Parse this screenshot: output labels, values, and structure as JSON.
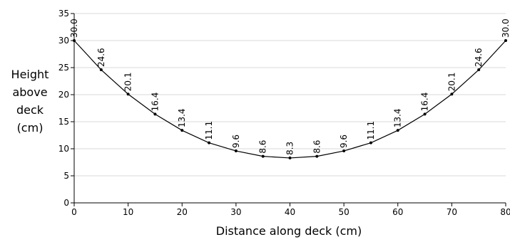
{
  "chart_data": {
    "type": "line",
    "xlabel": "Distance along deck (cm)",
    "ylabel_lines": [
      "Height",
      "above",
      "deck",
      "(cm)"
    ],
    "xlim": [
      0,
      80
    ],
    "ylim": [
      0,
      35
    ],
    "xticks": [
      0,
      10,
      20,
      30,
      40,
      50,
      60,
      70,
      80
    ],
    "yticks": [
      0,
      5,
      10,
      15,
      20,
      25,
      30,
      35
    ],
    "grid": "horizontal",
    "series": [
      {
        "x": [
          0,
          5,
          10,
          15,
          20,
          25,
          30,
          35,
          40,
          45,
          50,
          55,
          60,
          65,
          70,
          75,
          80
        ],
        "y": [
          30.0,
          24.6,
          20.1,
          16.4,
          13.4,
          11.1,
          9.6,
          8.6,
          8.3,
          8.6,
          9.6,
          11.1,
          13.4,
          16.4,
          20.1,
          24.6,
          30.0
        ],
        "labels": [
          "30.0",
          "24.6",
          "20.1",
          "16.4",
          "13.4",
          "11.1",
          "9.6",
          "8.6",
          "8.3",
          "8.6",
          "9.6",
          "11.1",
          "13.4",
          "16.4",
          "20.1",
          "24.6",
          "30.0"
        ]
      }
    ]
  }
}
